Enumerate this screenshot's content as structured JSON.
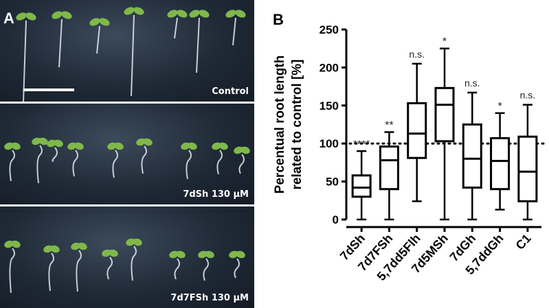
{
  "panel_a": {
    "letter": "A",
    "strips": [
      {
        "label": "Control",
        "seedling_count": 8
      },
      {
        "label": "7dSh 130 µM",
        "seedling_count": 9
      },
      {
        "label": "7d7FSh 130 µM",
        "seedling_count": 8
      }
    ],
    "colors": {
      "background": "#1f2a37",
      "leaf": "#7fb84a",
      "root": "#e6e9ee"
    }
  },
  "panel_b": {
    "letter": "B"
  },
  "chart_data": {
    "type": "box",
    "ylabel_line1": "Percentual root length",
    "ylabel_line2": "related to control [%]",
    "ylim": [
      0,
      250
    ],
    "yticks": [
      0,
      50,
      100,
      150,
      200,
      250
    ],
    "reference_line": 100,
    "categories": [
      "7dSh",
      "7d7FSh",
      "5,7dd5Flh",
      "7d5MSh",
      "7dGh",
      "5,7ddGh",
      "C1"
    ],
    "significance": [
      "****",
      "**",
      "n.s.",
      "*",
      "n.s.",
      "*",
      "n.s."
    ],
    "boxes": [
      {
        "min": 0,
        "q1": 30,
        "median": 42,
        "q3": 58,
        "max": 90
      },
      {
        "min": 0,
        "q1": 40,
        "median": 78,
        "q3": 96,
        "max": 115
      },
      {
        "min": 24,
        "q1": 81,
        "median": 113,
        "q3": 153,
        "max": 205
      },
      {
        "min": 0,
        "q1": 103,
        "median": 151,
        "q3": 173,
        "max": 225
      },
      {
        "min": 0,
        "q1": 42,
        "median": 80,
        "q3": 125,
        "max": 167
      },
      {
        "min": 13,
        "q1": 40,
        "median": 77,
        "q3": 107,
        "max": 140
      },
      {
        "min": 0,
        "q1": 24,
        "median": 63,
        "q3": 109,
        "max": 151
      }
    ],
    "colors": {
      "box": "#000000",
      "reference": "#000000"
    }
  }
}
